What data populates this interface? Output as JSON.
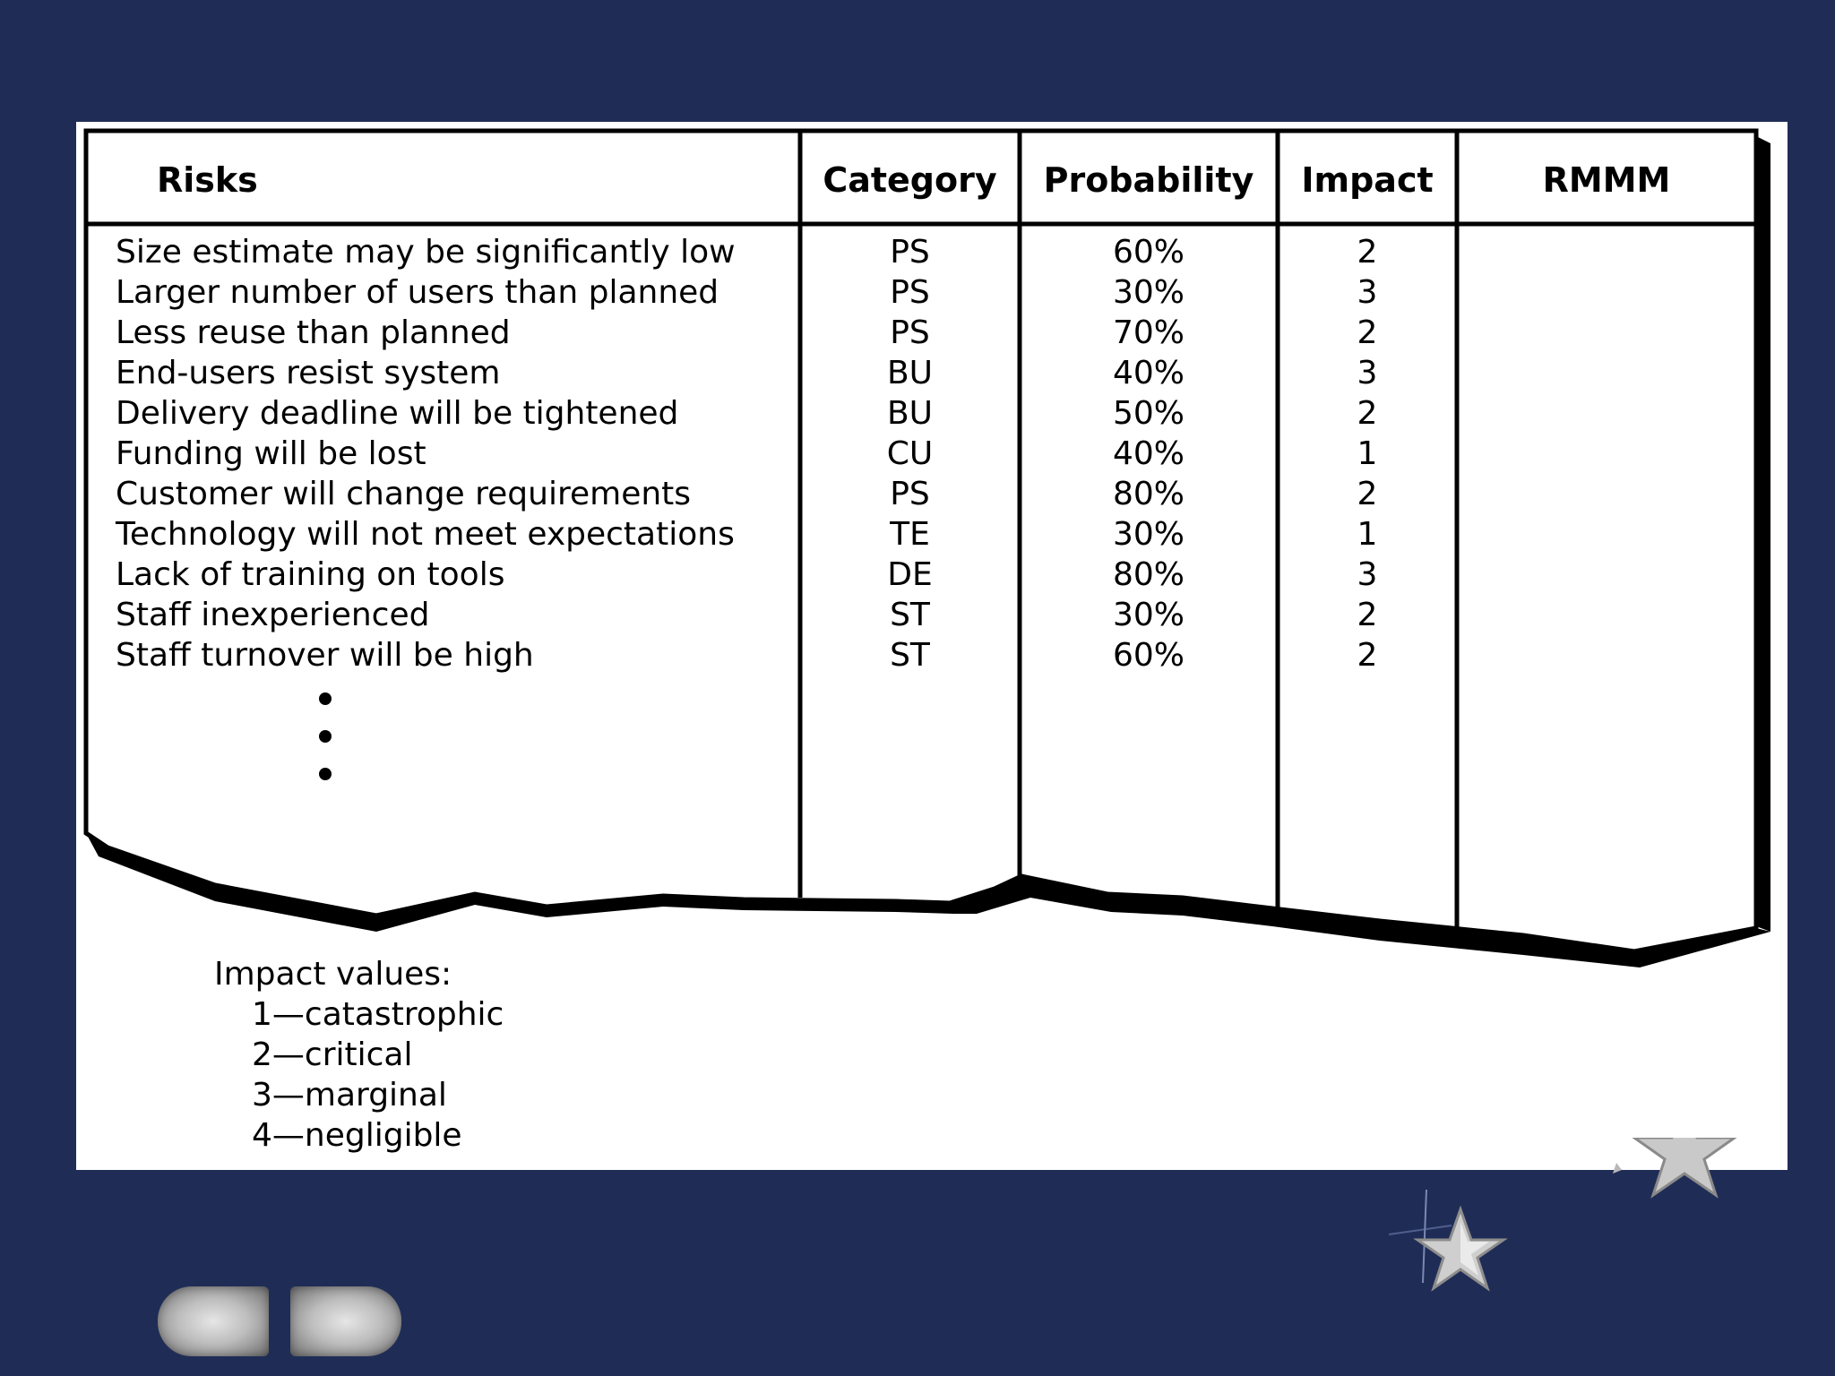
{
  "table": {
    "headers": {
      "risks": "Risks",
      "category": "Category",
      "probability": "Probability",
      "impact": "Impact",
      "rmmm": "RMMM"
    },
    "rows": [
      {
        "risk": "Size estimate may be significantly low",
        "category": "PS",
        "probability": "60%",
        "impact": "2"
      },
      {
        "risk": "Larger number of users than planned",
        "category": "PS",
        "probability": "30%",
        "impact": "3"
      },
      {
        "risk": "Less reuse than planned",
        "category": "PS",
        "probability": "70%",
        "impact": "2"
      },
      {
        "risk": "End-users resist system",
        "category": "BU",
        "probability": "40%",
        "impact": "3"
      },
      {
        "risk": "Delivery deadline will be tightened",
        "category": "BU",
        "probability": "50%",
        "impact": "2"
      },
      {
        "risk": "Funding will be lost",
        "category": "CU",
        "probability": "40%",
        "impact": "1"
      },
      {
        "risk": "Customer will change requirements",
        "category": "PS",
        "probability": "80%",
        "impact": "2"
      },
      {
        "risk": "Technology will not meet expectations",
        "category": "TE",
        "probability": "30%",
        "impact": "1"
      },
      {
        "risk": "Lack of training on tools",
        "category": "DE",
        "probability": "80%",
        "impact": "3"
      },
      {
        "risk": "Staff inexperienced",
        "category": "ST",
        "probability": "30%",
        "impact": "2"
      },
      {
        "risk": "Staff turnover will be high",
        "category": "ST",
        "probability": "60%",
        "impact": "2"
      }
    ]
  },
  "legend": {
    "title": "Impact values:",
    "items": [
      "1—catastrophic",
      "2—critical",
      "3—marginal",
      "4—negligible"
    ]
  },
  "navigation": {
    "prev_icon": "left-arrow-icon",
    "next_icon": "right-arrow-icon"
  },
  "colors": {
    "background": "#1f2d56",
    "paper": "#ffffff",
    "ink": "#000000",
    "button": "#bdbdbd"
  }
}
